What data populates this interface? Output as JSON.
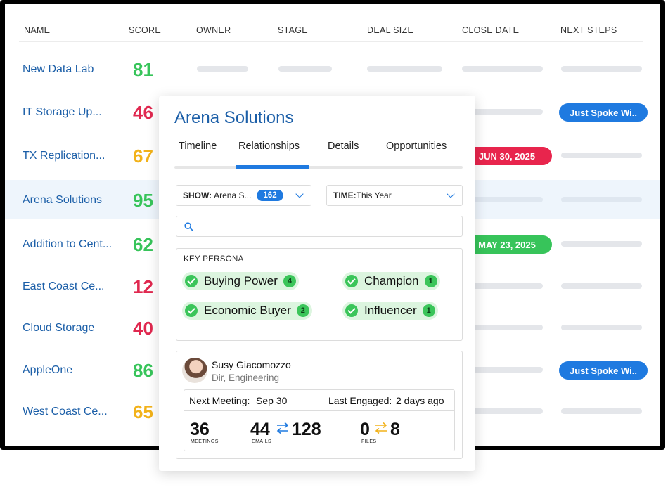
{
  "table": {
    "headers": [
      "NAME",
      "SCORE",
      "OWNER",
      "STAGE",
      "DEAL SIZE",
      "CLOSE DATE",
      "NEXT STEPS"
    ],
    "rows": [
      {
        "name": "New Data Lab",
        "score": "81",
        "score_color": "#37c45a"
      },
      {
        "name": "IT Storage Up...",
        "score": "46",
        "score_color": "#e0284f",
        "next_step": "Just Spoke Wi.."
      },
      {
        "name": "TX Replication...",
        "score": "67",
        "score_color": "#f2b21a",
        "close_date": "JUN 30, 2025",
        "close_color": "#e8254d"
      },
      {
        "name": "Arena Solutions",
        "score": "95",
        "score_color": "#37c45a",
        "selected": true
      },
      {
        "name": "Addition to Cent...",
        "score": "62",
        "score_color": "#37c45a",
        "close_date": "MAY 23, 2025",
        "close_color": "#37c45a"
      },
      {
        "name": "East Coast Ce...",
        "score": "12",
        "score_color": "#e0284f"
      },
      {
        "name": "Cloud Storage",
        "score": "40",
        "score_color": "#e0284f"
      },
      {
        "name": "AppleOne",
        "score": "86",
        "score_color": "#37c45a",
        "next_step": "Just Spoke Wi.."
      },
      {
        "name": "West Coast Ce...",
        "score": "65",
        "score_color": "#f2b21a"
      }
    ]
  },
  "card": {
    "title": "Arena Solutions",
    "tabs": [
      "Timeline",
      "Relationships",
      "Details",
      "Opportunities"
    ],
    "active_tab": "Relationships",
    "show_filter": {
      "label": "SHOW:",
      "value": "Arena S...",
      "count": "162"
    },
    "time_filter": {
      "label": "TIME:",
      "value": "This Year"
    },
    "search_placeholder": "",
    "key_persona": {
      "label": "KEY PERSONA",
      "items": [
        {
          "label": "Buying Power",
          "count": "4"
        },
        {
          "label": "Champion",
          "count": "1"
        },
        {
          "label": "Economic Buyer",
          "count": "2"
        },
        {
          "label": "Influencer",
          "count": "1"
        }
      ]
    },
    "contact": {
      "name": "Susy Giacomozzo",
      "role": "Dir, Engineering",
      "next_meeting_label": "Next Meeting:",
      "next_meeting_value": "Sep 30",
      "last_engaged_label": "Last Engaged:",
      "last_engaged_value": "2 days ago",
      "meetings": "36",
      "meetings_label": "MEETINGS",
      "emails_out": "44",
      "emails_in": "128",
      "emails_label": "EMAILS",
      "files_out": "0",
      "files_in": "8",
      "files_label": "FILES"
    }
  },
  "colors": {
    "accent": "#1f7ae0",
    "link": "#1c5fa8",
    "green": "#37c45a",
    "red": "#e0284f",
    "amber": "#f2b21a"
  }
}
